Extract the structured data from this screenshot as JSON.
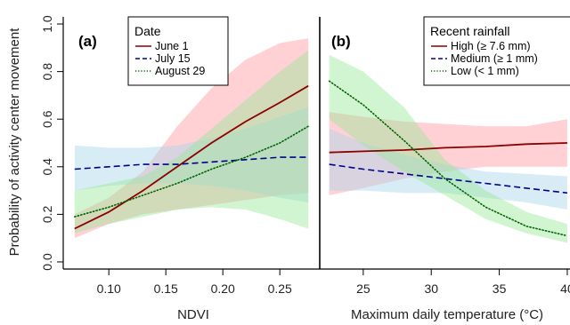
{
  "y_axis_label": "Probability of activity center movement",
  "chart_data": [
    {
      "type": "line",
      "panel_label": "(a)",
      "xlabel": "NDVI",
      "xlim": [
        0.06,
        0.285
      ],
      "ylim": [
        -0.03,
        1.03
      ],
      "xticks": [
        0.1,
        0.15,
        0.2,
        0.25
      ],
      "xtick_labels": [
        "0.10",
        "0.15",
        "0.20",
        "0.25"
      ],
      "yticks": [
        0.0,
        0.2,
        0.4,
        0.6,
        0.8,
        1.0
      ],
      "ytick_labels": [
        "0.0",
        "0.2",
        "0.4",
        "0.6",
        "0.8",
        "1.0"
      ],
      "legend_title": "Date",
      "legend_position": "top-left",
      "series": [
        {
          "name": "June 1",
          "color": "#8b0000",
          "line_style": "solid",
          "band_color": "#ff9aa2",
          "x": [
            0.07,
            0.1,
            0.13,
            0.16,
            0.19,
            0.22,
            0.25,
            0.275
          ],
          "y": [
            0.14,
            0.21,
            0.3,
            0.4,
            0.5,
            0.59,
            0.67,
            0.74
          ],
          "lower": [
            0.1,
            0.16,
            0.2,
            0.22,
            0.24,
            0.26,
            0.28,
            0.29
          ],
          "upper": [
            0.2,
            0.27,
            0.38,
            0.57,
            0.73,
            0.85,
            0.92,
            0.94
          ]
        },
        {
          "name": "July 15",
          "color": "#00008b",
          "line_style": "dashed",
          "band_color": "#a8d4ea",
          "x": [
            0.07,
            0.1,
            0.13,
            0.16,
            0.19,
            0.22,
            0.25,
            0.275
          ],
          "y": [
            0.39,
            0.4,
            0.41,
            0.41,
            0.42,
            0.43,
            0.44,
            0.44
          ],
          "lower": [
            0.3,
            0.32,
            0.33,
            0.33,
            0.32,
            0.3,
            0.27,
            0.25
          ],
          "upper": [
            0.49,
            0.48,
            0.48,
            0.49,
            0.52,
            0.56,
            0.61,
            0.65
          ]
        },
        {
          "name": "August 29",
          "color": "#006400",
          "line_style": "dotted",
          "band_color": "#98e698",
          "x": [
            0.07,
            0.1,
            0.13,
            0.16,
            0.19,
            0.22,
            0.25,
            0.275
          ],
          "y": [
            0.19,
            0.23,
            0.28,
            0.33,
            0.39,
            0.44,
            0.5,
            0.57
          ],
          "lower": [
            0.12,
            0.16,
            0.19,
            0.22,
            0.23,
            0.22,
            0.18,
            0.14
          ],
          "upper": [
            0.3,
            0.33,
            0.36,
            0.44,
            0.56,
            0.68,
            0.8,
            0.89
          ]
        }
      ]
    },
    {
      "type": "line",
      "panel_label": "(b)",
      "xlabel": "Maximum daily temperature (°C)",
      "xlim": [
        21.8,
        40.2
      ],
      "ylim": [
        -0.03,
        1.03
      ],
      "xticks": [
        25,
        30,
        35,
        40
      ],
      "xtick_labels": [
        "25",
        "30",
        "35",
        "40"
      ],
      "legend_title": "Recent rainfall",
      "legend_position": "top-right",
      "series": [
        {
          "name": "High (≥ 7.6 mm)",
          "color": "#8b0000",
          "line_style": "solid",
          "band_color": "#ff9aa2",
          "x": [
            22.5,
            25,
            28,
            31,
            34,
            37,
            40
          ],
          "y": [
            0.46,
            0.465,
            0.47,
            0.48,
            0.485,
            0.495,
            0.5
          ],
          "lower": [
            0.28,
            0.31,
            0.35,
            0.38,
            0.4,
            0.4,
            0.4
          ],
          "upper": [
            0.63,
            0.61,
            0.59,
            0.58,
            0.57,
            0.57,
            0.6
          ]
        },
        {
          "name": "Medium (≥ 1 mm)",
          "color": "#00008b",
          "line_style": "dashed",
          "band_color": "#a8d4ea",
          "x": [
            22.5,
            25,
            28,
            31,
            34,
            37,
            40
          ],
          "y": [
            0.41,
            0.39,
            0.37,
            0.35,
            0.33,
            0.31,
            0.29
          ],
          "lower": [
            0.3,
            0.3,
            0.29,
            0.29,
            0.27,
            0.25,
            0.22
          ],
          "upper": [
            0.56,
            0.5,
            0.45,
            0.41,
            0.38,
            0.37,
            0.36
          ]
        },
        {
          "name": "Low (< 1 mm)",
          "color": "#006400",
          "line_style": "dotted",
          "band_color": "#98e698",
          "x": [
            22.5,
            25,
            28,
            31,
            34,
            37,
            40
          ],
          "y": [
            0.76,
            0.66,
            0.51,
            0.35,
            0.23,
            0.15,
            0.11
          ],
          "lower": [
            0.6,
            0.49,
            0.38,
            0.28,
            0.18,
            0.12,
            0.08
          ],
          "upper": [
            0.87,
            0.8,
            0.65,
            0.43,
            0.3,
            0.21,
            0.16
          ]
        }
      ]
    }
  ]
}
